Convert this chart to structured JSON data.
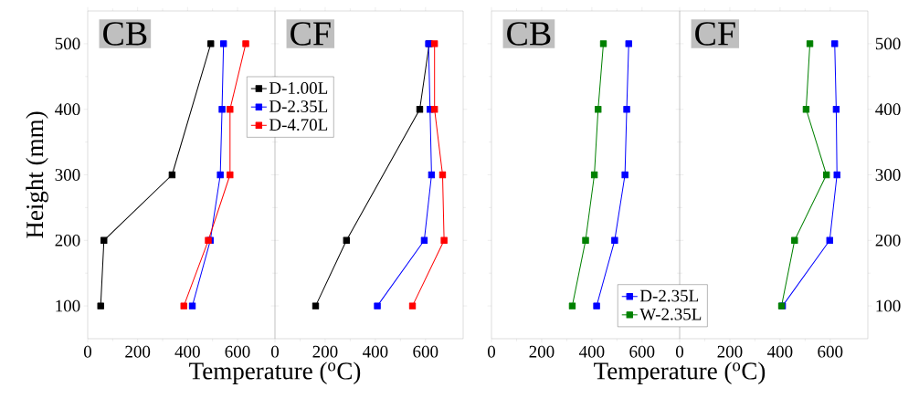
{
  "chart_data": [
    {
      "type": "line",
      "title": "CB",
      "xlabel": "Temperature ($^{o}$C)",
      "ylabel": "Height (mm)",
      "xlim": [
        0,
        750
      ],
      "xticks": [
        0,
        200,
        400,
        600
      ],
      "ylim": [
        50,
        550
      ],
      "yticks": [
        100,
        200,
        300,
        400,
        500
      ],
      "marker": "square",
      "series": [
        {
          "color": "#000000",
          "x": [
            493,
            338,
            65,
            52
          ],
          "values": [
            500,
            300,
            200,
            100
          ]
        },
        {
          "color": "#0000ff",
          "x": [
            544,
            538,
            531,
            491,
            419
          ],
          "values": [
            500,
            400,
            300,
            200,
            100
          ]
        },
        {
          "color": "#ff0000",
          "x": [
            633,
            570,
            570,
            483,
            385
          ],
          "values": [
            500,
            400,
            300,
            200,
            100
          ]
        }
      ]
    },
    {
      "type": "line",
      "title": "CF",
      "xlim": [
        0,
        750
      ],
      "xticks": [
        0,
        200,
        400,
        600
      ],
      "ylim": [
        50,
        550
      ],
      "yticks": [
        100,
        200,
        300,
        400,
        500
      ],
      "marker": "square",
      "tick_labels": "x",
      "legend": "top left",
      "series": [
        {
          "name": "D-1.00L",
          "color": "#000000",
          "x": [
            615,
            577,
            285,
            162
          ],
          "values": [
            500,
            400,
            200,
            100
          ]
        },
        {
          "name": "D-2.35L",
          "color": "#0000ff",
          "x": [
            612,
            618,
            624,
            595,
            408
          ],
          "values": [
            500,
            400,
            300,
            200,
            100
          ]
        },
        {
          "name": "D-4.70L",
          "color": "#ff0000",
          "x": [
            636,
            636,
            668,
            674,
            548
          ],
          "values": [
            500,
            400,
            300,
            200,
            100
          ]
        }
      ]
    },
    {
      "type": "line",
      "title": "CB",
      "xlabel": "Temperature ($^{o}$C)",
      "xlim": [
        0,
        750
      ],
      "xticks": [
        0,
        200,
        400,
        600
      ],
      "ylim": [
        50,
        550
      ],
      "yticks": [
        100,
        200,
        300,
        400,
        500
      ],
      "marker": "square",
      "tick_labels": "x",
      "series": [
        {
          "color": "#0000ff",
          "x": [
            547,
            539,
            532,
            491,
            419
          ],
          "values": [
            500,
            400,
            300,
            200,
            100
          ]
        },
        {
          "color": "#008000",
          "x": [
            446,
            425,
            410,
            375,
            322
          ],
          "values": [
            500,
            400,
            300,
            200,
            100
          ]
        }
      ]
    },
    {
      "type": "line",
      "title": "CF",
      "xlim": [
        0,
        750
      ],
      "xticks": [
        0,
        200,
        400,
        600
      ],
      "ylim": [
        50,
        550
      ],
      "yticks": [
        100,
        200,
        300,
        400,
        500
      ],
      "marker": "square",
      "legend": "bottom left",
      "series": [
        {
          "name": "D-2.35L",
          "color": "#0000ff",
          "x": [
            618,
            624,
            627,
            598,
            410
          ],
          "values": [
            500,
            400,
            300,
            200,
            100
          ]
        },
        {
          "name": "W-2.35L",
          "color": "#008000",
          "x": [
            519,
            504,
            585,
            458,
            406
          ],
          "values": [
            500,
            400,
            300,
            200,
            100
          ]
        }
      ]
    }
  ]
}
